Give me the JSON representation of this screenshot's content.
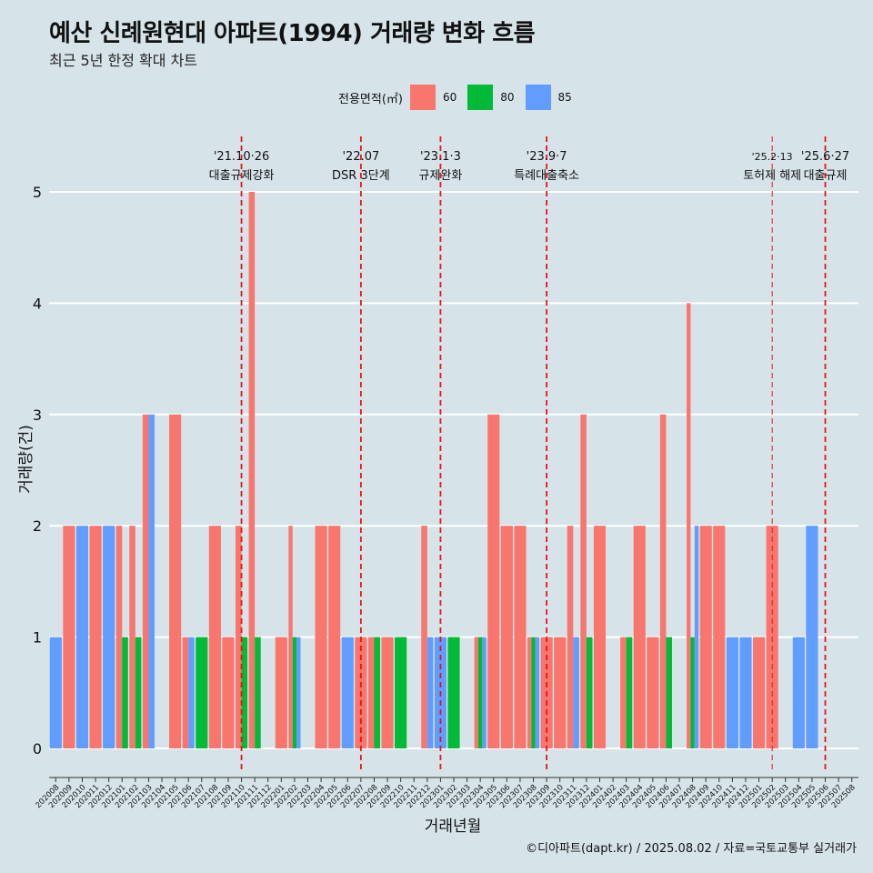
{
  "title": "예산 신례원현대 아파트(1994) 거래량 변화 흐름",
  "subtitle": "최근 5년 한정 확대 차트",
  "caption": "©디아파트(dapt.kr) / 2025.08.02 / 자료=국토교통부 실거래가",
  "legend": {
    "title": "전용면적(㎡)",
    "items": [
      {
        "label": "60",
        "color": "#f8766d"
      },
      {
        "label": "80",
        "color": "#00ba38"
      },
      {
        "label": "85",
        "color": "#619cff"
      }
    ]
  },
  "chart_data": {
    "type": "bar",
    "title": "예산 신례원현대 아파트(1994) 거래량 변화 흐름",
    "subtitle": "최근 5년 한정 확대 차트",
    "xlabel": "거래년월",
    "ylabel": "거래량(건)",
    "ylim": [
      0,
      5
    ],
    "yticks": [
      0,
      1,
      2,
      3,
      4,
      5
    ],
    "grid": true,
    "legend_position": "top",
    "categories": [
      "202008",
      "202009",
      "202010",
      "202011",
      "202012",
      "202101",
      "202102",
      "202103",
      "202104",
      "202105",
      "202106",
      "202107",
      "202108",
      "202109",
      "202110",
      "202111",
      "202112",
      "202201",
      "202202",
      "202203",
      "202204",
      "202205",
      "202206",
      "202207",
      "202208",
      "202209",
      "202210",
      "202211",
      "202212",
      "202301",
      "202302",
      "202303",
      "202304",
      "202305",
      "202306",
      "202307",
      "202308",
      "202309",
      "202310",
      "202311",
      "202312",
      "202401",
      "202402",
      "202403",
      "202404",
      "202405",
      "202406",
      "202407",
      "202408",
      "202409",
      "202410",
      "202411",
      "202412",
      "202501",
      "202502",
      "202503",
      "202504",
      "202505",
      "202506",
      "202507",
      "202508"
    ],
    "series": [
      {
        "name": "60",
        "color": "#f8766d",
        "values": [
          0,
          2,
          0,
          2,
          0,
          2,
          2,
          3,
          0,
          3,
          1,
          0,
          2,
          1,
          2,
          5,
          0,
          1,
          2,
          0,
          2,
          2,
          0,
          1,
          1,
          1,
          0,
          0,
          2,
          0,
          0,
          0,
          1,
          3,
          2,
          2,
          1,
          1,
          1,
          2,
          3,
          2,
          0,
          1,
          2,
          1,
          3,
          0,
          4,
          2,
          2,
          0,
          0,
          1,
          2,
          0,
          0,
          0,
          0,
          0,
          0
        ]
      },
      {
        "name": "80",
        "color": "#00ba38",
        "values": [
          0,
          0,
          0,
          0,
          0,
          1,
          1,
          0,
          0,
          0,
          0,
          1,
          0,
          0,
          1,
          1,
          0,
          0,
          1,
          0,
          0,
          0,
          0,
          0,
          1,
          0,
          1,
          0,
          0,
          0,
          1,
          0,
          1,
          0,
          0,
          0,
          1,
          0,
          0,
          0,
          1,
          0,
          0,
          1,
          0,
          0,
          1,
          0,
          1,
          0,
          0,
          0,
          0,
          0,
          0,
          0,
          0,
          0,
          0,
          0,
          0
        ]
      },
      {
        "name": "85",
        "color": "#619cff",
        "values": [
          1,
          0,
          2,
          0,
          2,
          0,
          0,
          3,
          0,
          0,
          1,
          0,
          0,
          0,
          0,
          0,
          0,
          0,
          1,
          0,
          0,
          0,
          1,
          0,
          0,
          0,
          0,
          0,
          1,
          1,
          0,
          0,
          1,
          0,
          0,
          0,
          1,
          0,
          0,
          1,
          0,
          0,
          0,
          0,
          0,
          0,
          0,
          0,
          2,
          0,
          0,
          1,
          1,
          0,
          0,
          0,
          1,
          2,
          0,
          0,
          0
        ]
      }
    ],
    "annotations": [
      {
        "x": "202110",
        "lines": [
          "'21.10·26",
          "대출규제강화"
        ]
      },
      {
        "x": "202207",
        "lines": [
          "'22.07",
          "DSR 3단계"
        ]
      },
      {
        "x": "202301",
        "lines": [
          "'23.1·3",
          "규제완화"
        ]
      },
      {
        "x": "202309",
        "lines": [
          "'23.9·7",
          "특례대출축소"
        ]
      },
      {
        "x": "202502",
        "lines": [
          "'25.2·13",
          "토허제 해제"
        ]
      },
      {
        "x": "202506",
        "lines": [
          "'25.6·27",
          "대출규제"
        ]
      }
    ]
  }
}
